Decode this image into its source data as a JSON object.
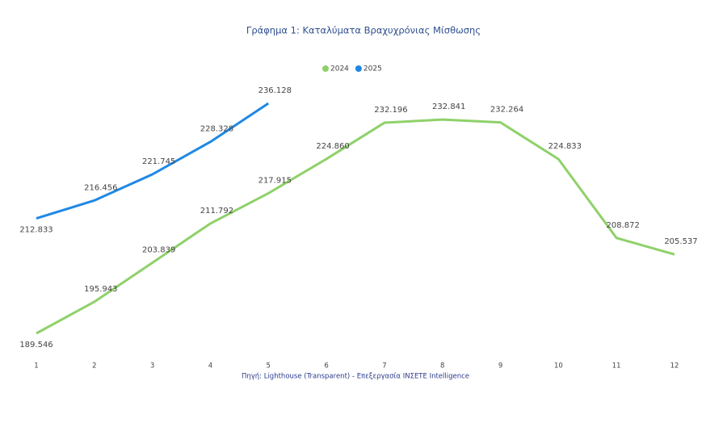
{
  "chart_data": {
    "type": "line",
    "title": "Γράφημα 1: Καταλύματα Βραχυχρόνιας Μίσθωσης",
    "source": "Πηγή: Lighthouse (Transparent) - Επεξεργασία INΣΕΤΕ Intelligence",
    "categories": [
      "1",
      "2",
      "3",
      "4",
      "5",
      "6",
      "7",
      "8",
      "9",
      "10",
      "11",
      "12"
    ],
    "series": [
      {
        "name": "2024",
        "color": "#8fd16a",
        "values": [
          189546,
          195943,
          203839,
          211792,
          217915,
          224860,
          232196,
          232841,
          232264,
          224833,
          208872,
          205537
        ],
        "value_labels": [
          "189.546",
          "195.943",
          "203.839",
          "211.792",
          "217.915",
          "224.860",
          "232.196",
          "232.841",
          "232.264",
          "224.833",
          "208.872",
          "205.537"
        ]
      },
      {
        "name": "2025",
        "color": "#1e88e5",
        "values": [
          212833,
          216456,
          221745,
          228328,
          236128,
          null,
          null,
          null,
          null,
          null,
          null,
          null
        ],
        "value_labels": [
          "212.833",
          "216.456",
          "221.745",
          "228.328",
          "236.128",
          null,
          null,
          null,
          null,
          null,
          null,
          null
        ]
      }
    ],
    "legend": "top"
  }
}
